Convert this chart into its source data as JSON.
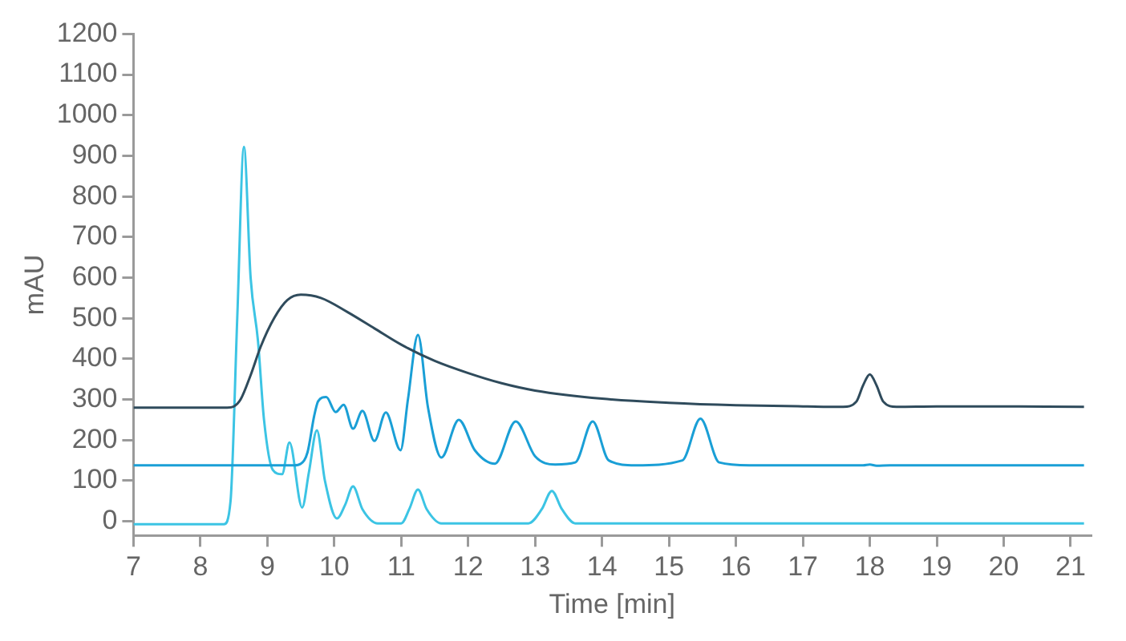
{
  "chart_data": {
    "type": "line",
    "xlabel": "Time [min]",
    "ylabel": "mAU",
    "legend": false,
    "xlim": [
      7,
      21.3
    ],
    "xticks": [
      7,
      8,
      9,
      10,
      11,
      12,
      13,
      14,
      15,
      16,
      17,
      18,
      19,
      20,
      21
    ],
    "ylim": [
      -35,
      1200
    ],
    "yticks": [
      0,
      100,
      200,
      300,
      400,
      500,
      600,
      700,
      800,
      900,
      1000,
      1100,
      1200
    ],
    "series": [
      {
        "color": "#2f4b5c",
        "x": [
          7,
          8.4,
          8.5,
          8.6,
          8.75,
          8.9,
          9.1,
          9.3,
          9.5,
          9.8,
          10.2,
          10.6,
          11,
          11.5,
          12,
          12.5,
          13,
          14,
          15,
          16,
          17,
          17.6,
          17.8,
          17.9,
          18,
          18.1,
          18.2,
          18.4,
          19,
          20,
          21.2
        ],
        "values": [
          280,
          280,
          283,
          300,
          360,
          430,
          500,
          545,
          558,
          550,
          515,
          475,
          435,
          395,
          365,
          340,
          322,
          302,
          292,
          286,
          283,
          282,
          295,
          335,
          362,
          335,
          295,
          282,
          283,
          283,
          282
        ]
      },
      {
        "color": "#1a9fd6",
        "x": [
          7,
          9.4,
          9.5,
          9.6,
          9.7,
          9.76,
          9.88,
          10.02,
          10.14,
          10.28,
          10.42,
          10.6,
          10.77,
          10.99,
          11.1,
          11.25,
          11.4,
          11.6,
          11.86,
          12.1,
          12.4,
          12.71,
          13.0,
          13.3,
          13.6,
          13.86,
          14.1,
          14.5,
          15.2,
          15.47,
          15.75,
          16.2,
          17.9,
          18.0,
          18.1,
          18.3,
          21.2
        ],
        "values": [
          138,
          138,
          142,
          170,
          260,
          296,
          306,
          269,
          287,
          228,
          272,
          198,
          268,
          175,
          300,
          459,
          280,
          157,
          250,
          175,
          142,
          246,
          160,
          140,
          145,
          246,
          150,
          138,
          150,
          253,
          145,
          138,
          138,
          140,
          137,
          138,
          138
        ]
      },
      {
        "color": "#3cc4e4",
        "x": [
          7,
          8.35,
          8.45,
          8.55,
          8.65,
          8.75,
          8.86,
          8.95,
          9.08,
          9.22,
          9.33,
          9.52,
          9.62,
          9.74,
          9.86,
          10.04,
          10.16,
          10.28,
          10.42,
          10.65,
          11.0,
          11.12,
          11.25,
          11.38,
          11.6,
          12.9,
          13.1,
          13.25,
          13.4,
          13.6,
          21.2
        ],
        "values": [
          -7,
          -7,
          50,
          500,
          922,
          600,
          444,
          250,
          127,
          116,
          194,
          34,
          120,
          224,
          100,
          7,
          40,
          86,
          30,
          -5,
          -5,
          30,
          78,
          30,
          -5,
          -5,
          30,
          75,
          30,
          -5,
          -5
        ]
      }
    ]
  }
}
